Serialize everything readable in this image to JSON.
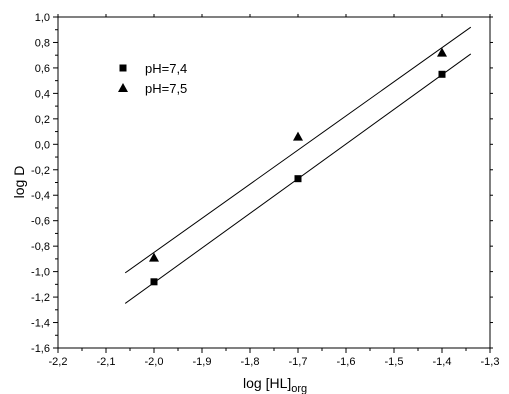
{
  "chart_data": {
    "type": "scatter",
    "xlabel": "log [HL]",
    "xlabel_sub": "org",
    "ylabel": "log D",
    "xlim": [
      -2.2,
      -1.3
    ],
    "ylim": [
      -1.6,
      1.0
    ],
    "x_ticks": [
      "-2,2",
      "-2,1",
      "-2,0",
      "-1,9",
      "-1,8",
      "-1,7",
      "-1,6",
      "-1,5",
      "-1,4",
      "-1,3"
    ],
    "y_ticks": [
      "-1,6",
      "-1,4",
      "-1,2",
      "-1,0",
      "-0,8",
      "-0,6",
      "-0,4",
      "-0,2",
      "0,0",
      "0,2",
      "0,4",
      "0,6",
      "0,8",
      "1,0"
    ],
    "legend_position": "top-left",
    "grid": false,
    "series": [
      {
        "name": "pH=7,4",
        "marker": "square",
        "points": [
          [
            -2.0,
            -1.08
          ],
          [
            -1.7,
            -0.27
          ],
          [
            -1.4,
            0.55
          ]
        ],
        "fit_line": [
          [
            -2.06,
            -1.25
          ],
          [
            -1.34,
            0.71
          ]
        ]
      },
      {
        "name": "pH=7,5",
        "marker": "triangle",
        "points": [
          [
            -2.0,
            -0.89
          ],
          [
            -1.7,
            0.06
          ],
          [
            -1.4,
            0.72
          ]
        ],
        "fit_line": [
          [
            -2.06,
            -1.01
          ],
          [
            -1.34,
            0.92
          ]
        ]
      }
    ]
  }
}
